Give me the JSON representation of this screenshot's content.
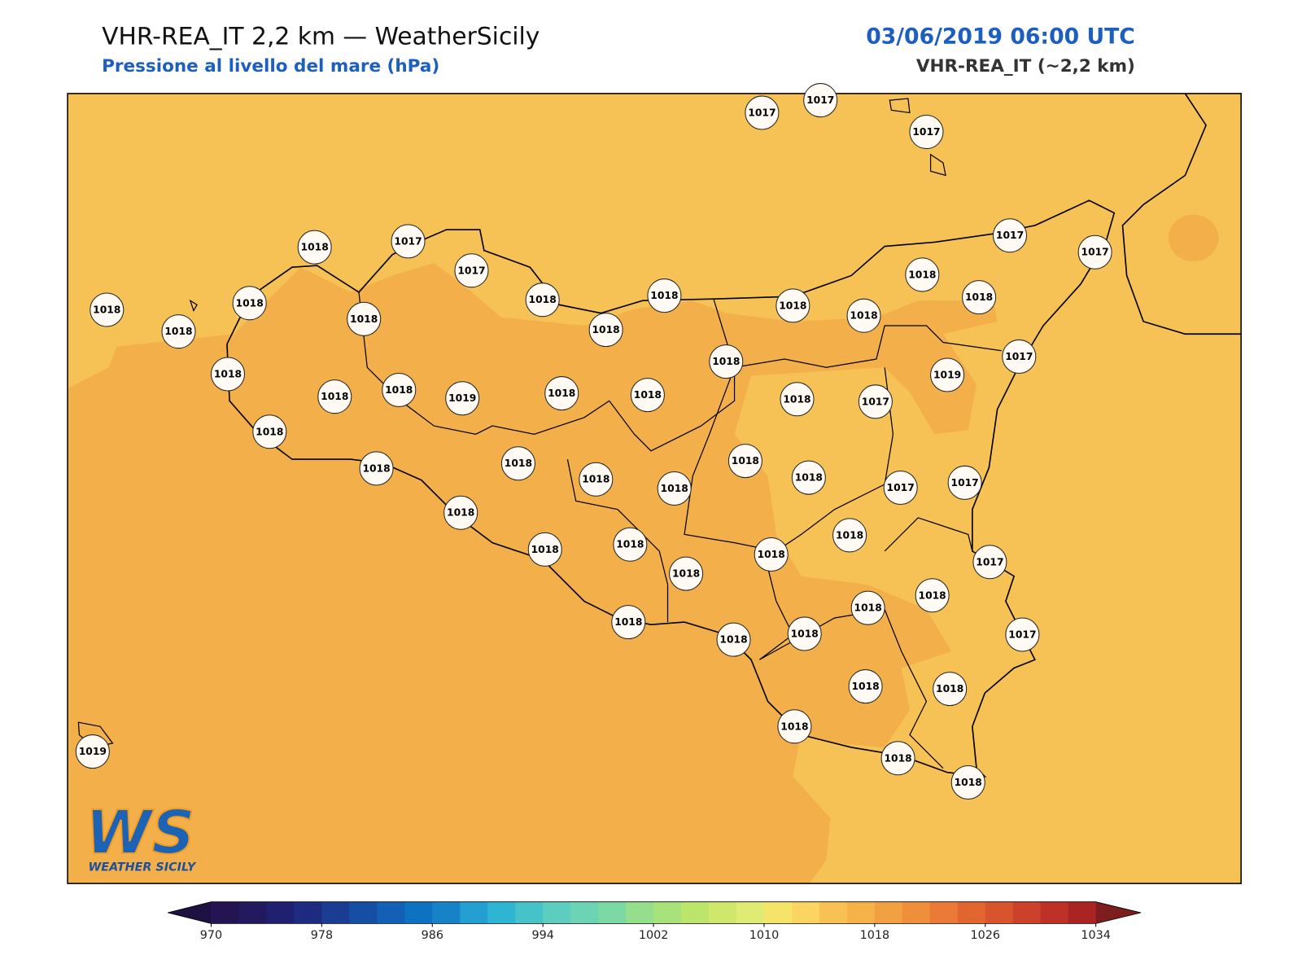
{
  "header": {
    "title": "VHR-REA_IT 2,2 km — WeatherSicily",
    "subtitle": "Pressione al livello del mare (hPa)",
    "timestamp": "03/06/2019 06:00 UTC",
    "model": "VHR-REA_IT (~2,2 km)"
  },
  "stations": [
    1017,
    1017,
    1017,
    1018,
    1017,
    1017,
    1018,
    1018,
    1018,
    1018,
    1018,
    1018,
    1018,
    1018,
    1018,
    1018,
    1018,
    1017,
    1017,
    1018,
    1018,
    1018,
    1019,
    1018,
    1018,
    1018,
    1018,
    1017,
    1019,
    1017,
    1018,
    1018,
    1018,
    1018,
    1018,
    1018,
    1018,
    1017,
    1017,
    1018,
    1018,
    1018,
    1018,
    1018,
    1018,
    1017,
    1018,
    1018,
    1018,
    1018,
    1018,
    1017,
    1018,
    1018,
    1018,
    1018,
    1018,
    1019
  ],
  "colorbar": {
    "lim": [
      970,
      1034
    ],
    "ticks": [
      970,
      978,
      986,
      994,
      1002,
      1010,
      1018,
      1026,
      1034
    ],
    "under_color": "#1e1040",
    "over_color": "#7e1d1d",
    "colors": [
      "#241452",
      "#22195e",
      "#1f2170",
      "#1d2c80",
      "#1a3c92",
      "#154ea5",
      "#1160b5",
      "#0d72c2",
      "#1682c8",
      "#23a0d1",
      "#2eb5d3",
      "#46c3c9",
      "#5ccdbf",
      "#6cd4b5",
      "#7dd9a3",
      "#94de8c",
      "#a8e27a",
      "#bce66b",
      "#cfe86c",
      "#e0eb74",
      "#f5e46a",
      "#fbd55f",
      "#f7c253",
      "#f4b249",
      "#f2a142",
      "#ef8f3c",
      "#ea7a35",
      "#e2662f",
      "#d8542c",
      "#cc4129",
      "#bd3127",
      "#ab2424"
    ]
  },
  "logo": {
    "mark": "WS",
    "text": "WEATHER SICILY"
  }
}
